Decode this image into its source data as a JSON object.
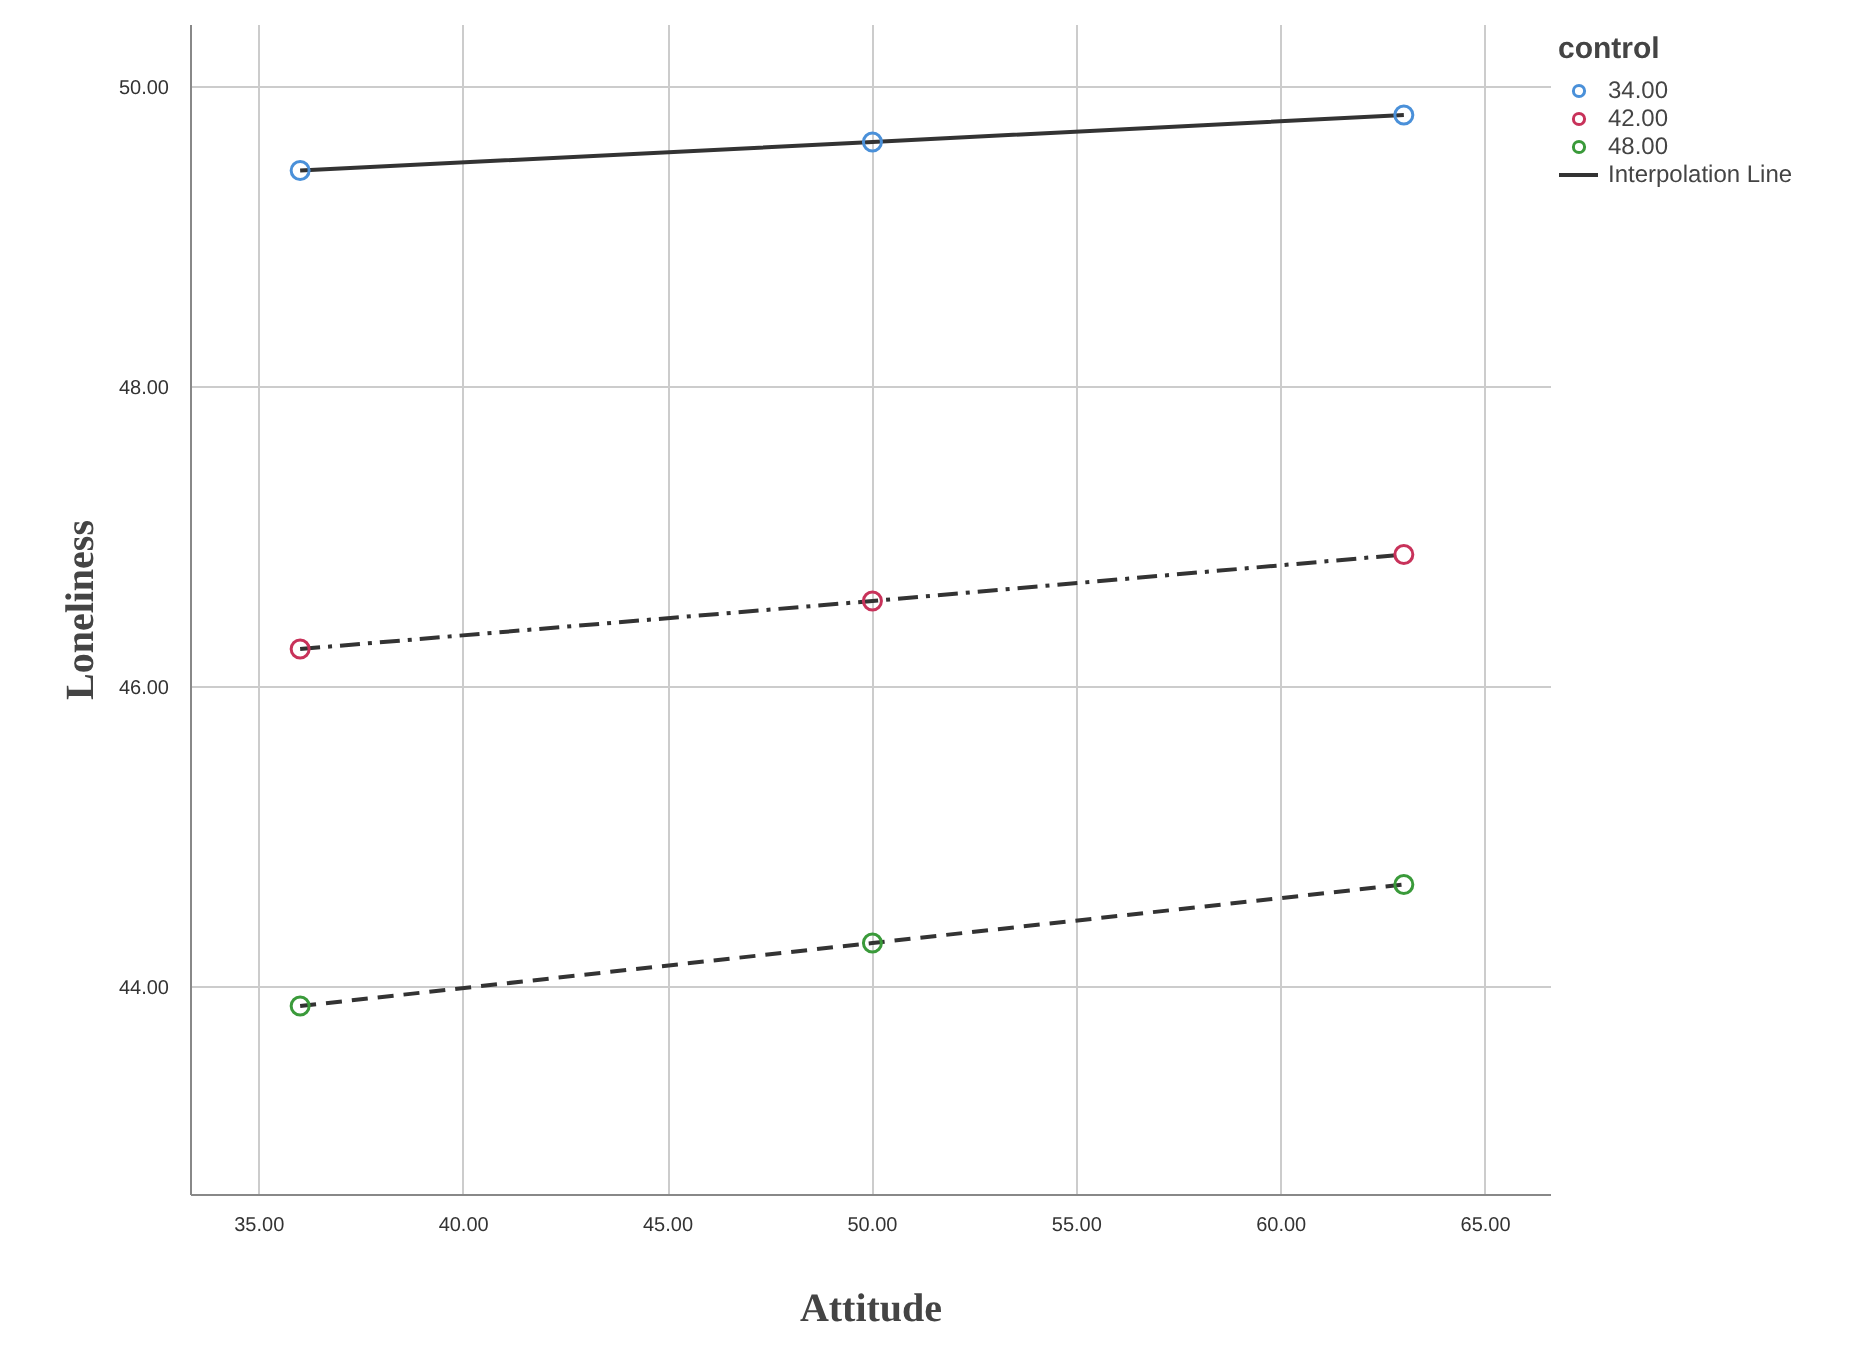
{
  "chart_data": {
    "type": "scatter",
    "xlabel": "Attitude",
    "ylabel": "Loneliness",
    "legend_title": "control",
    "x": [
      36,
      50,
      63
    ],
    "series": [
      {
        "name": "34.00",
        "color": "#4a90d9",
        "values": [
          49.44,
          49.63,
          49.81
        ],
        "marker": "circle"
      },
      {
        "name": "42.00",
        "color": "#c8325a",
        "values": [
          46.25,
          46.57,
          46.88
        ],
        "marker": "circle"
      },
      {
        "name": "48.00",
        "color": "#3a9a3a",
        "values": [
          43.87,
          44.29,
          44.68
        ],
        "marker": "circle"
      },
      {
        "name": "Interpolation Line",
        "type": "line",
        "color": "#333333",
        "values": [
          49.44,
          49.63,
          49.81
        ],
        "line_style": "solid",
        "marker": "none"
      },
      {
        "type": "line",
        "color": "#333333",
        "values": [
          46.25,
          46.57,
          46.88
        ],
        "line_style": "dashdot",
        "marker": "none"
      },
      {
        "type": "line",
        "color": "#333333",
        "values": [
          43.87,
          44.29,
          44.68
        ],
        "line_style": "dashed",
        "marker": "none"
      }
    ],
    "xlim": [
      33.33,
      66.6
    ],
    "ylim": [
      42.61,
      50.41
    ],
    "xticks": [
      {
        "value": 35,
        "label": "35.00"
      },
      {
        "value": 40,
        "label": "40.00"
      },
      {
        "value": 45,
        "label": "45.00"
      },
      {
        "value": 50,
        "label": "50.00"
      },
      {
        "value": 55,
        "label": "55.00"
      },
      {
        "value": 60,
        "label": "60.00"
      },
      {
        "value": 65,
        "label": "65.00"
      }
    ],
    "yticks": [
      {
        "value": 44,
        "label": "44.00"
      },
      {
        "value": 46,
        "label": "46.00"
      },
      {
        "value": 48,
        "label": "48.00"
      },
      {
        "value": 50,
        "label": "50.00"
      }
    ],
    "grid": true,
    "legend": "top right"
  }
}
